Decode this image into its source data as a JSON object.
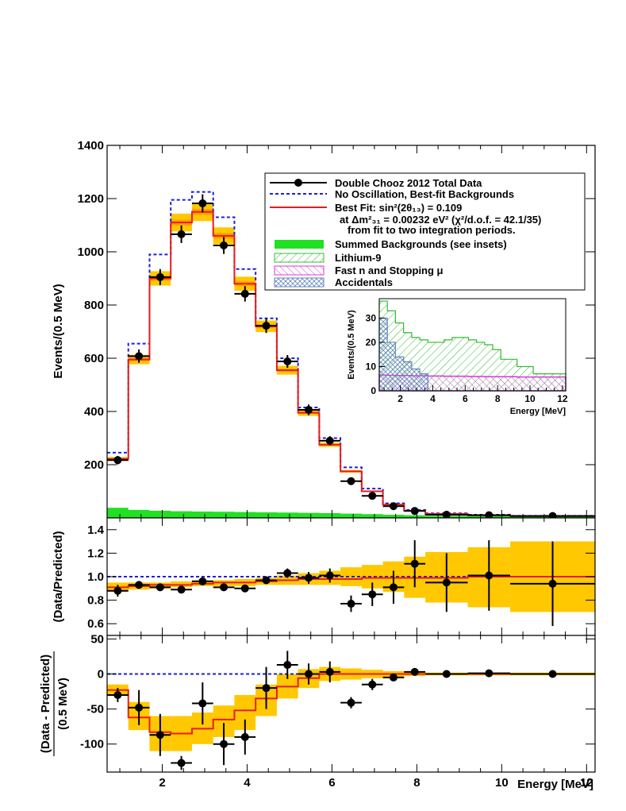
{
  "colors": {
    "data": "#000000",
    "no_osc": "#1f1fdd",
    "best_fit": "#e81c1c",
    "band": "#ffc800",
    "band_inner": "#ffa000",
    "backgrounds": "#22e022",
    "lithium": "#33bb33",
    "fastn": "#dd33dd",
    "accidentals": "#6688bb"
  },
  "chart_data": [
    {
      "type": "line",
      "panel": "main",
      "ylabel": "Events/(0.5 MeV)",
      "xlabel": "",
      "xlim": [
        0.7,
        12.2
      ],
      "ylim": [
        0,
        1400
      ],
      "yticks": [
        200,
        400,
        600,
        800,
        1000,
        1200,
        1400
      ],
      "bin_edges": [
        0.7,
        1.2,
        1.7,
        2.2,
        2.7,
        3.2,
        3.7,
        4.2,
        4.7,
        5.2,
        5.7,
        6.2,
        6.7,
        7.2,
        7.7,
        8.2,
        9.2,
        10.2,
        12.2
      ],
      "legend": {
        "position": "top-right",
        "entries": [
          "Double Chooz 2012 Total Data",
          "No Oscillation, Best-fit Backgrounds",
          "Best Fit: sin²(2θ₁₃) = 0.109",
          "at Δm²₃₁ = 0.00232 eV²  (χ²/d.o.f. = 42.1/35)",
          "from fit to two integration periods.",
          "Summed Backgrounds (see insets)",
          "Lithium-9",
          "Fast n and Stopping μ",
          "Accidentals"
        ]
      },
      "series": [
        {
          "name": "No Oscillation, Best-fit Backgrounds",
          "values": [
            245,
            655,
            990,
            1195,
            1225,
            1130,
            935,
            750,
            600,
            415,
            300,
            190,
            110,
            55,
            30,
            17,
            12,
            8
          ]
        },
        {
          "name": "Best Fit",
          "values": [
            222,
            595,
            900,
            1110,
            1150,
            1060,
            880,
            720,
            555,
            395,
            275,
            175,
            100,
            50,
            27,
            15,
            10,
            7
          ]
        },
        {
          "name": "Summed Backgrounds (see insets)",
          "values": [
            38,
            30,
            27,
            25,
            24,
            23,
            22,
            21,
            20,
            19,
            18,
            16,
            14,
            12,
            10,
            8,
            7,
            6
          ]
        }
      ],
      "data_points": {
        "x": [
          0.95,
          1.45,
          1.95,
          2.45,
          2.95,
          3.45,
          3.95,
          4.45,
          4.95,
          5.45,
          5.95,
          6.45,
          6.95,
          7.45,
          7.95,
          8.7,
          9.7,
          11.2
        ],
        "y": [
          217,
          608,
          905,
          1066,
          1182,
          1024,
          842,
          722,
          588,
          406,
          290,
          138,
          83,
          44,
          26,
          12,
          10,
          7
        ],
        "yerr": [
          16,
          25,
          30,
          33,
          34,
          32,
          29,
          27,
          24,
          20,
          17,
          12,
          9,
          7,
          5,
          3,
          3,
          2
        ]
      }
    },
    {
      "type": "scatter",
      "panel": "inset",
      "xlabel": "Energy [MeV]",
      "ylabel": "Events/(0.5 MeV)",
      "xlim": [
        0.7,
        12.2
      ],
      "ylim": [
        0,
        38
      ],
      "xticks": [
        2,
        4,
        6,
        8,
        10,
        12
      ],
      "yticks": [
        0,
        10,
        20,
        30
      ],
      "series": [
        {
          "name": "Lithium-9",
          "values": [
            37,
            33,
            28,
            24,
            22,
            21,
            20,
            20,
            21,
            22,
            22,
            21,
            20,
            19,
            17,
            13,
            10,
            7
          ]
        },
        {
          "name": "Fast n and Stopping μ",
          "values": [
            6.5,
            6.4,
            6.3,
            6.3,
            6.2,
            6.2,
            6.1,
            6.1,
            6.0,
            6.0,
            6.0,
            5.9,
            5.9,
            5.8,
            5.8,
            5.8,
            5.7,
            5.7
          ]
        },
        {
          "name": "Accidentals",
          "values": [
            30,
            20,
            14,
            12,
            9,
            7,
            0,
            0,
            0,
            0,
            0,
            0,
            0,
            0,
            0,
            0,
            0,
            0
          ]
        }
      ]
    },
    {
      "type": "scatter",
      "panel": "ratio",
      "ylabel": "(Data/Predicted)",
      "xlim": [
        0.7,
        12.2
      ],
      "ylim": [
        0.5,
        1.5
      ],
      "yticks": [
        0.6,
        0.8,
        1.0,
        1.2,
        1.4
      ],
      "band_lo": [
        0.87,
        0.89,
        0.9,
        0.91,
        0.92,
        0.92,
        0.92,
        0.93,
        0.93,
        0.93,
        0.93,
        0.92,
        0.9,
        0.87,
        0.82,
        0.78,
        0.74,
        0.7
      ],
      "band_hi": [
        0.95,
        0.95,
        0.95,
        0.96,
        0.97,
        0.97,
        0.98,
        0.99,
        1.01,
        1.03,
        1.05,
        1.08,
        1.1,
        1.13,
        1.17,
        1.21,
        1.25,
        1.3
      ],
      "best_fit": [
        0.91,
        0.92,
        0.93,
        0.93,
        0.94,
        0.95,
        0.95,
        0.96,
        0.97,
        0.98,
        0.98,
        0.98,
        0.99,
        0.99,
        0.99,
        0.99,
        1.0,
        1.0
      ],
      "data_points": {
        "x": [
          0.95,
          1.45,
          1.95,
          2.45,
          2.95,
          3.45,
          3.95,
          4.45,
          4.95,
          5.45,
          5.95,
          6.45,
          6.95,
          7.45,
          7.95,
          8.7,
          9.7,
          11.2
        ],
        "y": [
          0.88,
          0.93,
          0.91,
          0.89,
          0.96,
          0.91,
          0.9,
          0.97,
          1.03,
          0.99,
          1.01,
          0.77,
          0.85,
          0.91,
          1.11,
          0.95,
          1.01,
          0.94
        ],
        "yerr": [
          0.05,
          0.03,
          0.03,
          0.03,
          0.03,
          0.03,
          0.03,
          0.03,
          0.04,
          0.05,
          0.06,
          0.07,
          0.1,
          0.14,
          0.2,
          0.25,
          0.3,
          0.36
        ]
      }
    },
    {
      "type": "scatter",
      "panel": "difference",
      "xlabel": "Energy [MeV]",
      "ylabel": "(Data - Predicted) / (0.5 MeV)",
      "xlim": [
        0.7,
        12.2
      ],
      "ylim": [
        -140,
        55
      ],
      "xticks": [
        2,
        4,
        6,
        8,
        10,
        12
      ],
      "yticks": [
        -100,
        -50,
        0,
        50
      ],
      "band_lo": [
        -30,
        -80,
        -110,
        -110,
        -100,
        -90,
        -80,
        -60,
        -35,
        -20,
        -10,
        -8,
        -6,
        -4,
        -3,
        -2,
        -2,
        -2
      ],
      "band_hi": [
        -15,
        -40,
        -60,
        -60,
        -55,
        -45,
        -30,
        -15,
        0,
        7,
        10,
        8,
        6,
        4,
        3,
        2,
        2,
        2
      ],
      "best_fit": [
        -23,
        -62,
        -83,
        -85,
        -78,
        -65,
        -52,
        -35,
        -18,
        -6,
        0,
        0,
        0,
        0,
        0,
        0,
        0,
        0
      ],
      "data_points": {
        "x": [
          0.95,
          1.45,
          1.95,
          2.45,
          2.95,
          3.45,
          3.95,
          4.45,
          4.95,
          5.45,
          5.95,
          6.45,
          6.95,
          7.45,
          7.95,
          8.7,
          9.7,
          11.2
        ],
        "y": [
          -30,
          -48,
          -87,
          -127,
          -42,
          -100,
          -90,
          -20,
          13,
          0,
          3,
          -41,
          -15,
          -5,
          3,
          0,
          1,
          0
        ],
        "yerr": [
          10,
          25,
          30,
          10,
          30,
          30,
          25,
          30,
          20,
          15,
          15,
          8,
          8,
          5,
          3,
          2,
          2,
          2
        ]
      }
    }
  ]
}
